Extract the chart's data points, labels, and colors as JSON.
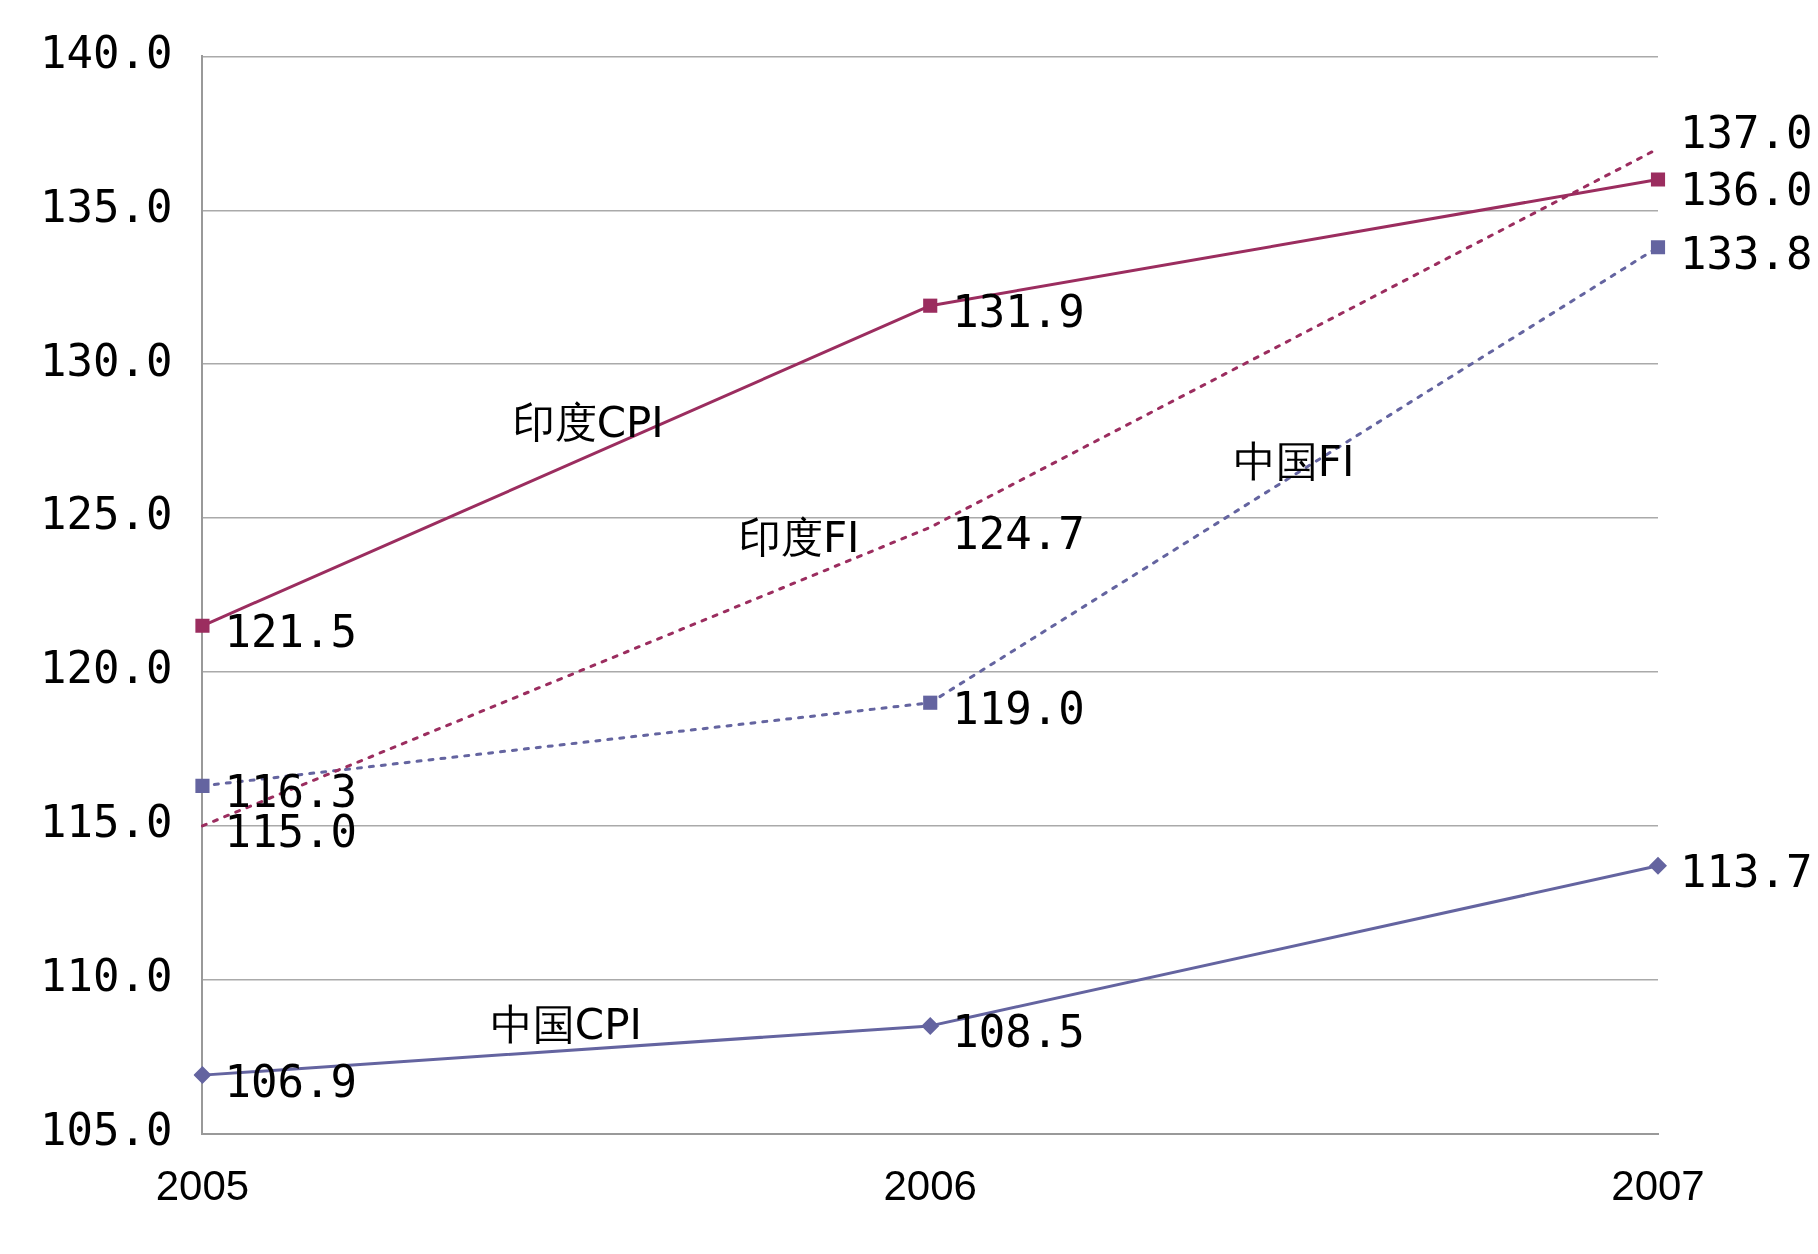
{
  "chart_data": {
    "type": "line",
    "categories": [
      "2005",
      "2006",
      "2007"
    ],
    "ylim": [
      105,
      140
    ],
    "yticks": [
      {
        "value": 105,
        "label": "105.0"
      },
      {
        "value": 110,
        "label": "110.0"
      },
      {
        "value": 115,
        "label": "115.0"
      },
      {
        "value": 120,
        "label": "120.0"
      },
      {
        "value": 125,
        "label": "125.0"
      },
      {
        "value": 130,
        "label": "130.0"
      },
      {
        "value": 135,
        "label": "135.0"
      },
      {
        "value": 140,
        "label": "140.0"
      }
    ],
    "grid": "y",
    "legend": false,
    "series": [
      {
        "name": "印度CPI",
        "color": "#9b2d5f",
        "values": [
          121.5,
          131.9,
          136.0
        ],
        "value_labels": [
          "121.5",
          "131.9",
          "136.0"
        ],
        "marker": "square",
        "line_style": "solid"
      },
      {
        "name": "印度FI",
        "color": "#9b2d5f",
        "values": [
          115.0,
          124.7,
          137.0
        ],
        "value_labels": [
          "115.0",
          "124.7",
          "137.0"
        ],
        "marker": "none",
        "line_style": "dotted"
      },
      {
        "name": "中国FI",
        "color": "#6464a0",
        "values": [
          116.3,
          119.0,
          133.8
        ],
        "value_labels": [
          "116.3",
          "119.0",
          "133.8"
        ],
        "marker": "square",
        "line_style": "dotted"
      },
      {
        "name": "中国CPI",
        "color": "#6464a0",
        "values": [
          106.9,
          108.5,
          113.7
        ],
        "value_labels": [
          "106.9",
          "108.5",
          "113.7"
        ],
        "marker": "diamond",
        "line_style": "solid"
      }
    ]
  }
}
